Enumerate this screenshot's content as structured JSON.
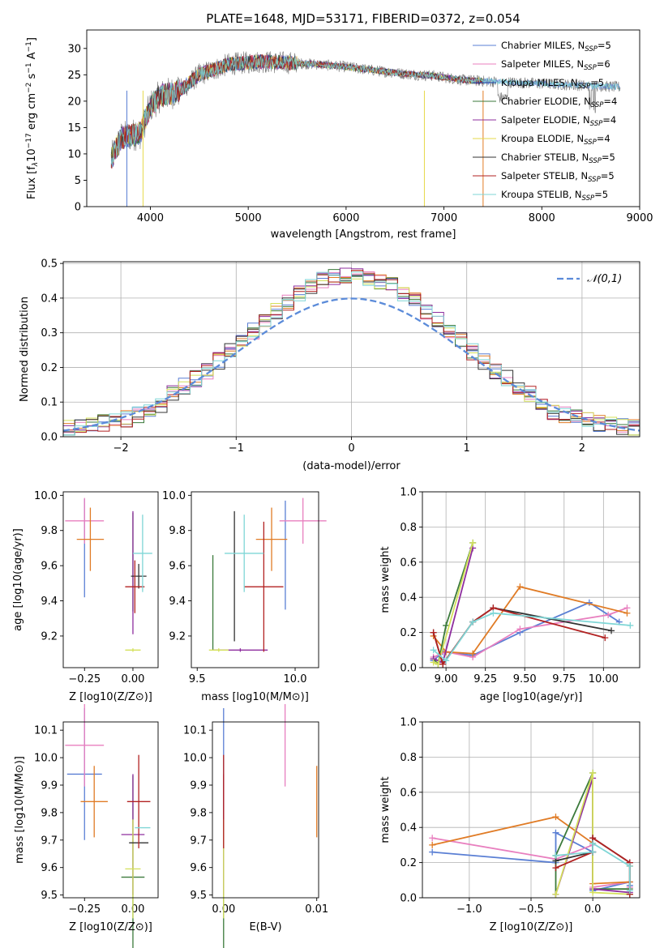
{
  "chart_data": [
    {
      "id": "spectrum",
      "type": "line",
      "title": "PLATE=1648, MJD=53171, FIBERID=0372, z=0.054",
      "xlabel": "wavelength [Angstrom, rest frame]",
      "ylabel": "Flux [f_λ 10^-17 erg cm^-2 s^-1 A^-1]",
      "xlim": [
        3350,
        9000
      ],
      "ylim": [
        0,
        33.5
      ],
      "xticks": [
        4000,
        5000,
        6000,
        7000,
        8000,
        9000
      ],
      "yticks": [
        0,
        5,
        10,
        15,
        20,
        25,
        30
      ],
      "legend_position": "top-right",
      "continuum_approx": {
        "x": [
          3600,
          3700,
          3800,
          3900,
          4000,
          4100,
          4200,
          4300,
          4500,
          4800,
          5100,
          5400,
          5700,
          6000,
          6300,
          6600,
          6900,
          7200,
          7400
        ],
        "y": [
          9,
          13,
          13.5,
          14,
          19,
          21,
          21.5,
          22,
          25,
          27,
          27.5,
          27.3,
          27,
          26.5,
          25.8,
          25.2,
          24.8,
          24,
          23.8
        ]
      },
      "observed_extra_x": [
        7400,
        8800
      ],
      "series": [
        {
          "name": "Chabrier MILES",
          "nssp": "5",
          "color": "#5a7fd4"
        },
        {
          "name": "Salpeter MILES",
          "nssp": "6",
          "color": "#e87fbf"
        },
        {
          "name": "Kroupa MILES",
          "nssp": "5",
          "color": "#1f3fa8"
        },
        {
          "name": "Chabrier ELODIE",
          "nssp": "4",
          "color": "#3b7a3b"
        },
        {
          "name": "Salpeter ELODIE",
          "nssp": "4",
          "color": "#8e2e9e"
        },
        {
          "name": "Kroupa ELODIE",
          "nssp": "4",
          "color": "#e6d84a"
        },
        {
          "name": "Chabrier STELIB",
          "nssp": "5",
          "color": "#333333"
        },
        {
          "name": "Salpeter STELIB",
          "nssp": "5",
          "color": "#b22222"
        },
        {
          "name": "Kroupa STELIB",
          "nssp": "5",
          "color": "#7fd6d6"
        }
      ]
    },
    {
      "id": "residuals",
      "type": "line",
      "xlabel": "(data-model)/error",
      "ylabel": "Normed distribution",
      "xlim": [
        -2.5,
        2.5
      ],
      "ylim": [
        0,
        0.505
      ],
      "xticks": [
        -2,
        -1,
        0,
        1,
        2
      ],
      "yticks": [
        0.0,
        0.1,
        0.2,
        0.3,
        0.4,
        0.5
      ],
      "grid": true,
      "legend_position": "top-right",
      "reference_curve": {
        "name": "𝒩(0,1)",
        "mean": 0,
        "sigma": 1,
        "color": "#5b8bd9"
      },
      "bin_edges_start": -2.5,
      "bin_width": 0.1,
      "histogram_colors": [
        "#5a7fd4",
        "#e87fbf",
        "#e07b25",
        "#3b7a3b",
        "#8e2e9e",
        "#d4e05a",
        "#333333",
        "#b22222",
        "#7fd6d6"
      ]
    },
    {
      "id": "z-age",
      "type": "scatter",
      "xlabel": "Z [log10(Z/Z⊙)]",
      "ylabel": "age  [log10(age/yr)]",
      "xlim": [
        -0.36,
        0.13
      ],
      "ylim": [
        9.02,
        10.02
      ],
      "xticks": [
        -0.25,
        0.0
      ],
      "xticklabels": [
        "−0.25",
        "0.00"
      ],
      "yticks": [
        9.2,
        9.4,
        9.6,
        9.8,
        10.0
      ],
      "points": [
        {
          "x": -0.25,
          "xerr": 0.0,
          "y": 9.7,
          "yerr": 0.28,
          "color": "#5a7fd4"
        },
        {
          "x": -0.25,
          "xerr": 0.1,
          "y": 9.855,
          "yerr": 0.13,
          "color": "#e87fbf"
        },
        {
          "x": -0.22,
          "xerr": 0.07,
          "y": 9.75,
          "yerr": 0.18,
          "color": "#e07b25"
        },
        {
          "x": 0.0,
          "xerr": 0.0,
          "y": 9.62,
          "yerr": 0.28,
          "color": "#3b7a3b"
        },
        {
          "x": 0.0,
          "xerr": 0.0,
          "y": 9.56,
          "yerr": 0.35,
          "color": "#8e2e9e"
        },
        {
          "x": 0.0,
          "xerr": 0.04,
          "y": 9.12,
          "yerr": 0.01,
          "color": "#d4e05a"
        },
        {
          "x": 0.03,
          "xerr": 0.04,
          "y": 9.54,
          "yerr": 0.07,
          "color": "#333333"
        },
        {
          "x": 0.01,
          "xerr": 0.05,
          "y": 9.48,
          "yerr": 0.15,
          "color": "#b22222"
        },
        {
          "x": 0.05,
          "xerr": 0.05,
          "y": 9.67,
          "yerr": 0.22,
          "color": "#7fd6d6"
        }
      ]
    },
    {
      "id": "mass-age",
      "type": "scatter",
      "xlabel": "mass [log10(M/M⊙)]",
      "ylabel": "",
      "xlim": [
        9.47,
        10.12
      ],
      "ylim": [
        9.02,
        10.02
      ],
      "xticks": [
        9.5,
        10.0
      ],
      "xticklabels": [
        "9.5",
        "10.0"
      ],
      "yticks": [
        9.2,
        9.4,
        9.6,
        9.8,
        10.0
      ],
      "points": [
        {
          "x": 9.95,
          "xerr": 0.0,
          "y": 9.66,
          "yerr": 0.31,
          "color": "#5a7fd4"
        },
        {
          "x": 10.04,
          "xerr": 0.12,
          "y": 9.855,
          "yerr": 0.13,
          "color": "#e87fbf"
        },
        {
          "x": 9.88,
          "xerr": 0.08,
          "y": 9.75,
          "yerr": 0.18,
          "color": "#e07b25"
        },
        {
          "x": 9.58,
          "xerr": 0.0,
          "y": 9.39,
          "yerr": 0.27,
          "color": "#3b7a3b"
        },
        {
          "x": 9.72,
          "xerr": 0.14,
          "y": 9.12,
          "yerr": 0.01,
          "color": "#8e2e9e"
        },
        {
          "x": 9.61,
          "xerr": 0.05,
          "y": 9.12,
          "yerr": 0.01,
          "color": "#d4e05a"
        },
        {
          "x": 9.69,
          "xerr": 0.0,
          "y": 9.54,
          "yerr": 0.37,
          "color": "#333333"
        },
        {
          "x": 9.84,
          "xerr": 0.1,
          "y": 9.48,
          "yerr": 0.37,
          "color": "#b22222"
        },
        {
          "x": 9.74,
          "xerr": 0.1,
          "y": 9.67,
          "yerr": 0.22,
          "color": "#7fd6d6"
        }
      ]
    },
    {
      "id": "age-weight",
      "type": "line",
      "xlabel": "age  [log10(age/yr)]",
      "ylabel": "mass weight",
      "xlim": [
        8.85,
        10.23
      ],
      "ylim": [
        0.0,
        1.0
      ],
      "xticks": [
        9.0,
        9.25,
        9.5,
        9.75,
        10.0
      ],
      "xticklabels": [
        "9.00",
        "9.25",
        "9.50",
        "9.75",
        "10.00"
      ],
      "yticks": [
        0.0,
        0.2,
        0.4,
        0.6,
        0.8,
        1.0
      ],
      "grid": true,
      "series": [
        {
          "color": "#5a7fd4",
          "x": [
            8.92,
            8.98,
            9.17,
            9.47,
            9.91,
            10.1
          ],
          "y": [
            0.04,
            0.09,
            0.07,
            0.2,
            0.37,
            0.26
          ]
        },
        {
          "color": "#e87fbf",
          "x": [
            8.92,
            9.0,
            9.17,
            9.47,
            10.03,
            10.15
          ],
          "y": [
            0.06,
            0.09,
            0.06,
            0.22,
            0.3,
            0.34
          ]
        },
        {
          "color": "#e07b25",
          "x": [
            8.92,
            9.0,
            9.17,
            9.47,
            10.15
          ],
          "y": [
            0.18,
            0.09,
            0.08,
            0.46,
            0.31
          ]
        },
        {
          "color": "#3b7a3b",
          "x": [
            8.92,
            8.95,
            9.0,
            9.17
          ],
          "y": [
            0.05,
            0.02,
            0.24,
            0.71
          ]
        },
        {
          "color": "#8e2e9e",
          "x": [
            8.92,
            8.98,
            9.17
          ],
          "y": [
            0.05,
            0.03,
            0.68
          ]
        },
        {
          "color": "#d4e05a",
          "x": [
            8.92,
            8.95,
            9.17
          ],
          "y": [
            0.03,
            0.02,
            0.71
          ]
        },
        {
          "color": "#333333",
          "x": [
            8.92,
            8.98,
            9.17,
            9.3,
            10.05
          ],
          "y": [
            0.2,
            0.02,
            0.26,
            0.34,
            0.21
          ]
        },
        {
          "color": "#b22222",
          "x": [
            8.92,
            8.98,
            9.17,
            9.3,
            10.01
          ],
          "y": [
            0.2,
            0.02,
            0.26,
            0.34,
            0.17
          ]
        },
        {
          "color": "#7fd6d6",
          "x": [
            8.92,
            9.0,
            9.17,
            9.3,
            10.17
          ],
          "y": [
            0.1,
            0.04,
            0.26,
            0.31,
            0.24
          ]
        }
      ]
    },
    {
      "id": "z-mass",
      "type": "scatter",
      "xlabel": "Z [log10(Z/Z⊙)]",
      "ylabel": "mass [log10(M/M⊙)]",
      "xlim": [
        -0.36,
        0.13
      ],
      "ylim": [
        9.49,
        10.13
      ],
      "xticks": [
        -0.25,
        0.0
      ],
      "xticklabels": [
        "−0.25",
        "0.00"
      ],
      "yticks": [
        9.5,
        9.6,
        9.7,
        9.8,
        9.9,
        10.0,
        10.1
      ],
      "points": [
        {
          "x": -0.25,
          "xerr": 0.09,
          "y": 9.94,
          "yerr": 0.24,
          "color": "#5a7fd4"
        },
        {
          "x": -0.25,
          "xerr": 0.1,
          "y": 10.045,
          "yerr": 0.15,
          "color": "#e87fbf"
        },
        {
          "x": -0.2,
          "xerr": 0.07,
          "y": 9.84,
          "yerr": 0.13,
          "color": "#e07b25"
        },
        {
          "x": 0.0,
          "xerr": 0.06,
          "y": 9.565,
          "yerr": 0.37,
          "color": "#3b7a3b"
        },
        {
          "x": 0.0,
          "xerr": 0.06,
          "y": 9.72,
          "yerr": 0.22,
          "color": "#8e2e9e"
        },
        {
          "x": 0.0,
          "xerr": 0.04,
          "y": 9.595,
          "yerr": 0.18,
          "color": "#d4e05a"
        },
        {
          "x": 0.03,
          "xerr": 0.05,
          "y": 9.69,
          "yerr": 0.0,
          "color": "#333333"
        },
        {
          "x": 0.03,
          "xerr": 0.06,
          "y": 9.84,
          "yerr": 0.17,
          "color": "#b22222"
        },
        {
          "x": 0.05,
          "xerr": 0.04,
          "y": 9.745,
          "yerr": 0.0,
          "color": "#7fd6d6"
        }
      ]
    },
    {
      "id": "ebv-mass",
      "type": "scatter",
      "xlabel": "E(B-V)",
      "ylabel": "",
      "xlim": [
        -0.0012,
        0.0102
      ],
      "ylim": [
        9.49,
        10.13
      ],
      "xticks": [
        0.0,
        0.01
      ],
      "xticklabels": [
        "0.00",
        "0.01"
      ],
      "yticks": [
        9.5,
        9.6,
        9.7,
        9.8,
        9.9,
        10.0,
        10.1
      ],
      "points": [
        {
          "x": 0.0,
          "xerr": 0,
          "y": 9.94,
          "yerr": 0.24,
          "color": "#5a7fd4"
        },
        {
          "x": 0.0066,
          "xerr": 0,
          "y": 10.045,
          "yerr": 0.15,
          "color": "#e87fbf"
        },
        {
          "x": 0.01,
          "xerr": 0,
          "y": 9.84,
          "yerr": 0.13,
          "color": "#e07b25"
        },
        {
          "x": 0.0,
          "xerr": 0,
          "y": 9.565,
          "yerr": 0.37,
          "color": "#3b7a3b"
        },
        {
          "x": 0.0,
          "xerr": 0,
          "y": 9.72,
          "yerr": 0.22,
          "color": "#8e2e9e"
        },
        {
          "x": 0.0,
          "xerr": 0,
          "y": 9.595,
          "yerr": 0.18,
          "color": "#d4e05a"
        },
        {
          "x": 0.0,
          "xerr": 0,
          "y": 9.69,
          "yerr": 0.0,
          "color": "#333333"
        },
        {
          "x": 0.0,
          "xerr": 0,
          "y": 9.84,
          "yerr": 0.17,
          "color": "#b22222"
        },
        {
          "x": 0.0,
          "xerr": 0,
          "y": 9.745,
          "yerr": 0.0,
          "color": "#7fd6d6"
        }
      ]
    },
    {
      "id": "z-weight",
      "type": "line",
      "xlabel": "Z [log10(Z/Z⊙)]",
      "ylabel": "mass weight",
      "xlim": [
        -1.38,
        0.38
      ],
      "ylim": [
        0.0,
        1.0
      ],
      "xticks": [
        -1.0,
        -0.5,
        0.0
      ],
      "xticklabels": [
        "−1.0",
        "−0.5",
        "0.0"
      ],
      "yticks": [
        0.0,
        0.2,
        0.4,
        0.6,
        0.8,
        1.0
      ],
      "grid": true,
      "series": [
        {
          "color": "#5a7fd4",
          "x": [
            -1.3,
            -0.3,
            -0.3,
            0.0,
            0.0,
            0.3,
            0.3
          ],
          "y": [
            0.26,
            0.2,
            0.37,
            0.26,
            0.04,
            0.09,
            0.07
          ]
        },
        {
          "color": "#e87fbf",
          "x": [
            -1.3,
            -0.3,
            0.0,
            0.0,
            0.3,
            0.3
          ],
          "y": [
            0.34,
            0.22,
            0.3,
            0.06,
            0.09,
            0.06
          ]
        },
        {
          "color": "#e07b25",
          "x": [
            -1.3,
            -0.3,
            0.0,
            0.0,
            0.3,
            0.3
          ],
          "y": [
            0.3,
            0.46,
            0.31,
            0.08,
            0.09,
            0.18
          ]
        },
        {
          "color": "#3b7a3b",
          "x": [
            -0.3,
            -0.3,
            0.0,
            0.0,
            0.3
          ],
          "y": [
            0.02,
            0.24,
            0.71,
            0.05,
            0.05
          ]
        },
        {
          "color": "#8e2e9e",
          "x": [
            -0.3,
            0.0,
            0.0,
            0.3
          ],
          "y": [
            0.02,
            0.68,
            0.05,
            0.03
          ]
        },
        {
          "color": "#d4e05a",
          "x": [
            -0.3,
            0.0,
            0.0,
            0.3
          ],
          "y": [
            0.02,
            0.71,
            0.03,
            0.02
          ]
        },
        {
          "color": "#333333",
          "x": [
            -0.3,
            0.0,
            0.0,
            0.3,
            0.3
          ],
          "y": [
            0.21,
            0.26,
            0.34,
            0.2,
            0.02
          ]
        },
        {
          "color": "#b22222",
          "x": [
            -0.3,
            0.0,
            0.0,
            0.3,
            0.3
          ],
          "y": [
            0.17,
            0.26,
            0.34,
            0.2,
            0.02
          ]
        },
        {
          "color": "#7fd6d6",
          "x": [
            -0.3,
            0.0,
            0.0,
            0.3,
            0.3
          ],
          "y": [
            0.24,
            0.26,
            0.31,
            0.18,
            0.04
          ]
        }
      ]
    }
  ]
}
